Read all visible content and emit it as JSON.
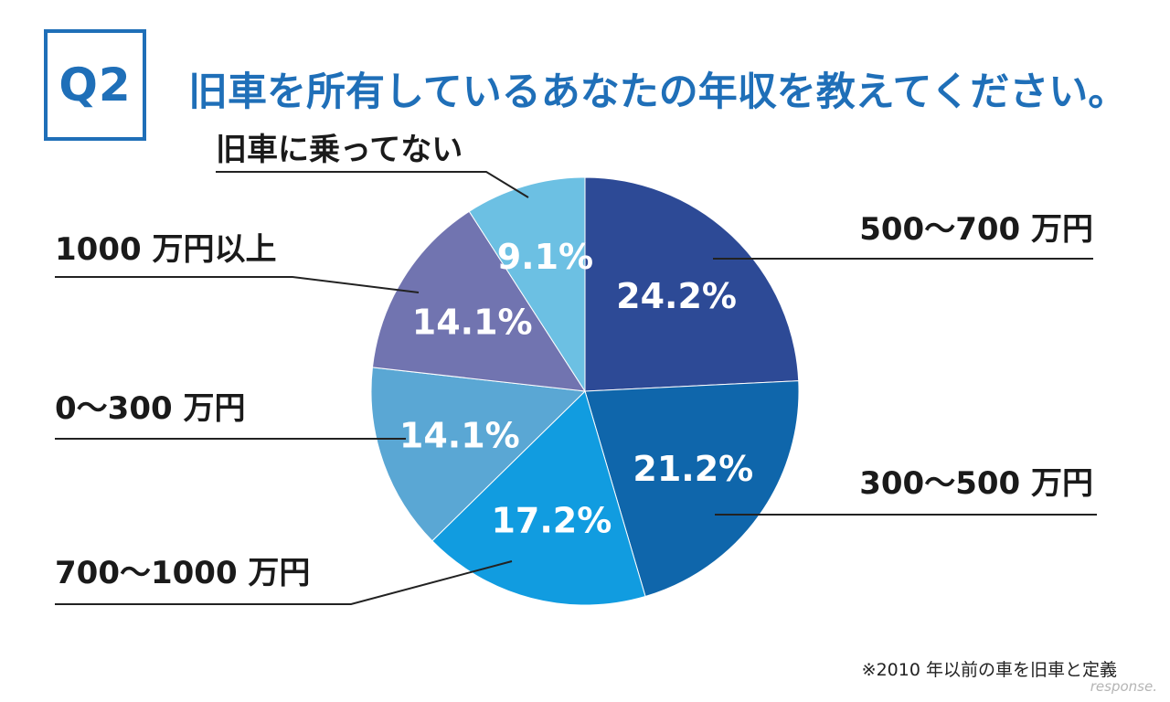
{
  "header": {
    "q_label": "Q2",
    "title": "旧車を所有しているあなたの年収を教えてください。"
  },
  "chart_data": {
    "type": "pie",
    "title": "旧車を所有しているあなたの年収を教えてください。",
    "slices": [
      {
        "label": "500〜700 万円",
        "value": 24.2,
        "display": "24.2%",
        "color": "#2d4a96"
      },
      {
        "label": "300〜500 万円",
        "value": 21.2,
        "display": "21.2%",
        "color": "#0f66ab"
      },
      {
        "label": "700〜1000 万円",
        "value": 17.2,
        "display": "17.2%",
        "color": "#119ce0"
      },
      {
        "label": "0〜300 万円",
        "value": 14.1,
        "display": "14.1%",
        "color": "#5aa7d4"
      },
      {
        "label": "1000 万円以上",
        "value": 14.1,
        "display": "14.1%",
        "color": "#7174b0"
      },
      {
        "label": "旧車に乗ってない",
        "value": 9.1,
        "display": "9.1%",
        "color": "#6cc0e3"
      }
    ]
  },
  "footnote": "※2010 年以前の車を旧車と定義",
  "watermark": "response."
}
